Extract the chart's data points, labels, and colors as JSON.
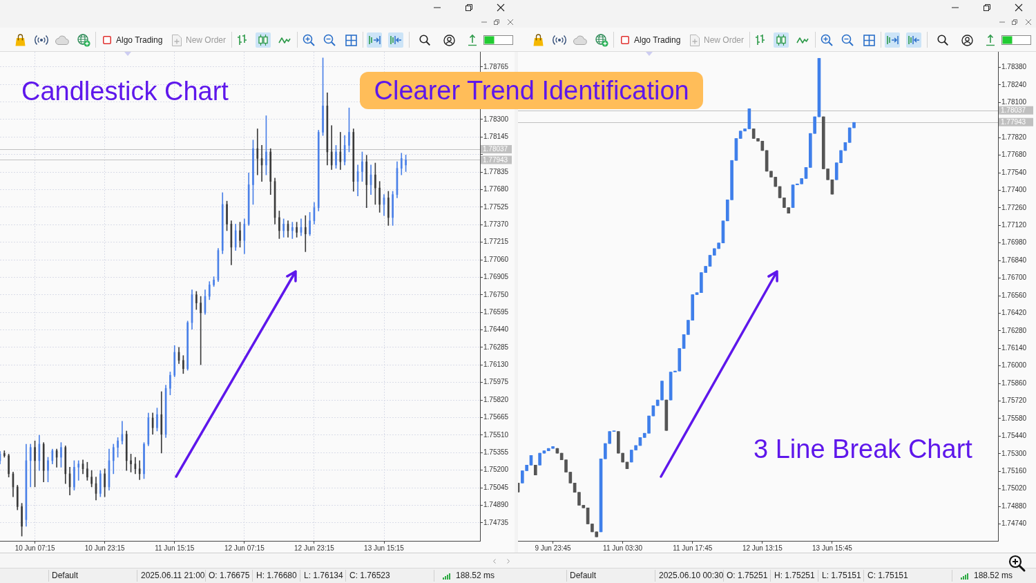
{
  "chart_data": [
    {
      "type": "candlestick",
      "title": "Candlestick Chart",
      "categories": [
        null,
        null,
        null,
        null,
        null,
        null,
        null,
        null,
        "10 Jun 07:15",
        null,
        null,
        null,
        null,
        null,
        null,
        null,
        null,
        null,
        null,
        null,
        null,
        null,
        null,
        null,
        "10 Jun 23:15",
        null,
        null,
        null,
        null,
        null,
        null,
        null,
        null,
        null,
        null,
        null,
        null,
        null,
        null,
        null,
        "11 Jun 15:15",
        null,
        null,
        null,
        null,
        null,
        null,
        null,
        null,
        null,
        null,
        null,
        null,
        null,
        null,
        null,
        "12 Jun 07:15",
        null,
        null,
        null,
        null,
        null,
        null,
        null,
        null,
        null,
        null,
        null,
        null,
        null,
        null,
        null,
        "12 Jun 23:15",
        null,
        null,
        null,
        null,
        null,
        null,
        null,
        null,
        null,
        null,
        null,
        null,
        null,
        null,
        null,
        "13 Jun 15:15",
        null,
        null,
        null,
        null,
        null,
        null,
        null,
        null,
        null,
        null,
        null,
        null,
        null,
        null,
        null,
        null,
        null,
        null,
        null,
        null,
        null,
        null
      ],
      "ohlc": [
        [
          1.75284,
          1.75366,
          1.75255,
          1.75342
        ],
        [
          1.75348,
          1.75372,
          1.75314,
          1.75328
        ],
        [
          1.75328,
          1.75342,
          1.75139,
          1.75168
        ],
        [
          1.75168,
          1.75183,
          1.74965,
          1.75052
        ],
        [
          1.75052,
          1.75067,
          1.74849,
          1.74878
        ],
        [
          1.74878,
          1.74907,
          1.74617,
          1.74704
        ],
        [
          1.74762,
          1.7543,
          1.74704,
          1.75284
        ],
        [
          1.75284,
          1.7543,
          1.75052,
          1.75401
        ],
        [
          1.75401,
          1.75459,
          1.75052,
          1.75284
        ],
        [
          1.75284,
          1.75508,
          1.75197,
          1.7543
        ],
        [
          1.7543,
          1.75444,
          1.75096,
          1.75197
        ],
        [
          1.75197,
          1.75314,
          1.75096,
          1.75284
        ],
        [
          1.75284,
          1.75386,
          1.75255,
          1.75372
        ],
        [
          1.75372,
          1.75386,
          1.75226,
          1.75314
        ],
        [
          1.75314,
          1.75444,
          1.75226,
          1.75401
        ],
        [
          1.75401,
          1.75415,
          1.75081,
          1.75168
        ],
        [
          1.75168,
          1.75226,
          1.7498,
          1.75052
        ],
        [
          1.75052,
          1.75284,
          1.75023,
          1.75226
        ],
        [
          1.75226,
          1.75284,
          1.7511,
          1.75255
        ],
        [
          1.75255,
          1.7529,
          1.75168,
          1.75212
        ],
        [
          1.75212,
          1.7527,
          1.7511,
          1.75139
        ],
        [
          1.75139,
          1.75197,
          1.75052,
          1.75081
        ],
        [
          1.75081,
          1.75139,
          1.74936,
          1.74994
        ],
        [
          1.74994,
          1.75197,
          1.74965,
          1.75168
        ],
        [
          1.75168,
          1.75212,
          1.74965,
          1.75052
        ],
        [
          1.75052,
          1.75386,
          1.75023,
          1.75284
        ],
        [
          1.75284,
          1.7543,
          1.75168,
          1.75401
        ],
        [
          1.75401,
          1.75488,
          1.75314,
          1.75459
        ],
        [
          1.75459,
          1.75633,
          1.7543,
          1.75517
        ],
        [
          1.75517,
          1.75546,
          1.75197,
          1.75284
        ],
        [
          1.75284,
          1.75342,
          1.75183,
          1.75255
        ],
        [
          1.75255,
          1.75314,
          1.75168,
          1.75212
        ],
        [
          1.75212,
          1.75284,
          1.75116,
          1.75168
        ],
        [
          1.75168,
          1.75444,
          1.75125,
          1.7543
        ],
        [
          1.7543,
          1.75705,
          1.75415,
          1.75662
        ],
        [
          1.75662,
          1.75705,
          1.75517,
          1.75575
        ],
        [
          1.75575,
          1.75749,
          1.75546,
          1.75691
        ],
        [
          1.75691,
          1.75894,
          1.75351,
          1.75517
        ],
        [
          1.75517,
          1.75952,
          1.75488,
          1.75923
        ],
        [
          1.75923,
          1.76068,
          1.75865,
          1.76039
        ],
        [
          1.76039,
          1.76301,
          1.76025,
          1.76242
        ],
        [
          1.76242,
          1.76286,
          1.76141,
          1.7617
        ],
        [
          1.7617,
          1.76213,
          1.76054,
          1.76097
        ],
        [
          1.76097,
          1.76518,
          1.76083,
          1.76504
        ],
        [
          1.76504,
          1.76794,
          1.76446,
          1.76751
        ],
        [
          1.76751,
          1.7678,
          1.7662,
          1.76678
        ],
        [
          1.76678,
          1.76736,
          1.76132,
          1.76591
        ],
        [
          1.76591,
          1.76794,
          1.76576,
          1.76736
        ],
        [
          1.76736,
          1.76867,
          1.76707,
          1.76838
        ],
        [
          1.76838,
          1.7691,
          1.76823,
          1.76881
        ],
        [
          1.76881,
          1.7716,
          1.76867,
          1.77142
        ],
        [
          1.77142,
          1.77653,
          1.77113,
          1.77549
        ],
        [
          1.77549,
          1.77578,
          1.77317,
          1.77375
        ],
        [
          1.77375,
          1.77404,
          1.77015,
          1.77171
        ],
        [
          1.77171,
          1.77375,
          1.77142,
          1.77317
        ],
        [
          1.77317,
          1.77392,
          1.77171,
          1.7723
        ],
        [
          1.7723,
          1.77421,
          1.77113,
          1.77375
        ],
        [
          1.77375,
          1.77828,
          1.77363,
          1.77723
        ],
        [
          1.77723,
          1.78118,
          1.77549,
          1.78042
        ],
        [
          1.78042,
          1.78217,
          1.7781,
          1.77955
        ],
        [
          1.77955,
          1.78071,
          1.77752,
          1.77897
        ],
        [
          1.77897,
          1.78333,
          1.7781,
          1.78013
        ],
        [
          1.78013,
          1.78042,
          1.77636,
          1.77752
        ],
        [
          1.77752,
          1.77781,
          1.77375,
          1.77433
        ],
        [
          1.77433,
          1.77491,
          1.77247,
          1.77317
        ],
        [
          1.77317,
          1.77421,
          1.77259,
          1.77375
        ],
        [
          1.77375,
          1.77404,
          1.77259,
          1.77317
        ],
        [
          1.77317,
          1.77392,
          1.77247,
          1.77346
        ],
        [
          1.77346,
          1.77392,
          1.77259,
          1.77302
        ],
        [
          1.77302,
          1.77421,
          1.77273,
          1.77346
        ],
        [
          1.77346,
          1.7745,
          1.77131,
          1.77288
        ],
        [
          1.77288,
          1.77479,
          1.77273,
          1.77404
        ],
        [
          1.77404,
          1.77566,
          1.77375,
          1.7752
        ],
        [
          1.7752,
          1.78205,
          1.77491,
          1.78187
        ],
        [
          1.78187,
          1.78844,
          1.78158,
          1.7842
        ],
        [
          1.7842,
          1.78536,
          1.77897,
          1.78013
        ],
        [
          1.78013,
          1.78246,
          1.77857,
          1.77897
        ],
        [
          1.77897,
          1.78071,
          1.77868,
          1.78013
        ],
        [
          1.78013,
          1.78187,
          1.77857,
          1.77926
        ],
        [
          1.77926,
          1.78158,
          1.77897,
          1.78071
        ],
        [
          1.78071,
          1.78402,
          1.78013,
          1.78187
        ],
        [
          1.78187,
          1.78217,
          1.77665,
          1.77752
        ],
        [
          1.77752,
          1.77897,
          1.77624,
          1.77839
        ],
        [
          1.77839,
          1.78013,
          1.77752,
          1.77926
        ],
        [
          1.77926,
          1.77984,
          1.7752,
          1.77723
        ],
        [
          1.77723,
          1.77897,
          1.77636,
          1.7781
        ],
        [
          1.7781,
          1.77915,
          1.77549,
          1.77694
        ],
        [
          1.77694,
          1.77752,
          1.77479,
          1.77549
        ],
        [
          1.77549,
          1.77636,
          1.7745,
          1.77607
        ],
        [
          1.77607,
          1.77665,
          1.77363,
          1.77433
        ],
        [
          1.77433,
          1.77665,
          1.77363,
          1.77636
        ],
        [
          1.77636,
          1.77926,
          1.77607,
          1.77868
        ],
        [
          1.77868,
          1.78002,
          1.7781,
          1.77955
        ],
        [
          1.77897,
          1.77986,
          1.77839,
          1.77943
        ],
        null,
        null,
        null,
        null,
        null,
        null,
        null,
        null,
        null,
        null,
        null,
        null,
        null,
        null,
        null,
        null,
        null
      ],
      "colors": [
        "#4a80e8",
        "#3a3a3a",
        "#3a3a3a",
        "#3a3a3a",
        "#3a3a3a",
        "#3a3a3a",
        "#4a80e8",
        "#4a80e8",
        "#3a3a3a",
        "#4a80e8",
        "#3a3a3a",
        "#4a80e8",
        "#4a80e8",
        "#3a3a3a",
        "#4a80e8",
        "#3a3a3a",
        "#3a3a3a",
        "#4a80e8",
        "#4a80e8",
        "#3a3a3a",
        "#3a3a3a",
        "#3a3a3a",
        "#3a3a3a",
        "#4a80e8",
        "#3a3a3a",
        "#4a80e8",
        "#4a80e8",
        "#4a80e8",
        "#4a80e8",
        "#3a3a3a",
        "#3a3a3a",
        "#3a3a3a",
        "#3a3a3a",
        "#4a80e8",
        "#4a80e8",
        "#3a3a3a",
        "#4a80e8",
        "#3a3a3a",
        "#4a80e8",
        "#4a80e8",
        "#4a80e8",
        "#3a3a3a",
        "#3a3a3a",
        "#4a80e8",
        "#4a80e8",
        "#3a3a3a",
        "#3a3a3a",
        "#4a80e8",
        "#4a80e8",
        "#4a80e8",
        "#4a80e8",
        "#4a80e8",
        "#3a3a3a",
        "#3a3a3a",
        "#4a80e8",
        "#3a3a3a",
        "#4a80e8",
        "#4a80e8",
        "#4a80e8",
        "#3a3a3a",
        "#3a3a3a",
        "#4a80e8",
        "#3a3a3a",
        "#3a3a3a",
        "#3a3a3a",
        "#4a80e8",
        "#3a3a3a",
        "#4a80e8",
        "#3a3a3a",
        "#4a80e8",
        "#3a3a3a",
        "#4a80e8",
        "#4a80e8",
        "#4a80e8",
        "#4a80e8",
        "#3a3a3a",
        "#3a3a3a",
        "#4a80e8",
        "#3a3a3a",
        "#4a80e8",
        "#4a80e8",
        "#3a3a3a",
        "#4a80e8",
        "#4a80e8",
        "#3a3a3a",
        "#4a80e8",
        "#3a3a3a",
        "#3a3a3a",
        "#4a80e8",
        "#3a3a3a",
        "#4a80e8",
        "#4a80e8",
        "#4a80e8",
        "#4a80e8",
        null,
        null,
        null,
        null,
        null,
        null,
        null,
        null,
        null,
        null,
        null,
        null,
        null,
        null,
        null,
        null,
        null
      ],
      "ylim": [
        1.74575,
        1.78898
      ],
      "yticks": [
        1.74735,
        {
          "value": 1.7489,
          "label": "1.74890"
        },
        1.75045,
        {
          "value": 1.752,
          "label": "1.75200"
        },
        1.75355,
        {
          "value": 1.7551,
          "label": "1.75510"
        },
        1.75665,
        {
          "value": 1.7582,
          "label": "1.75820"
        },
        1.75975,
        {
          "value": 1.7613,
          "label": "1.76130"
        },
        1.76285,
        {
          "value": 1.7644,
          "label": "1.76440"
        },
        1.76595,
        {
          "value": 1.7675,
          "label": "1.76750"
        },
        1.76905,
        {
          "value": 1.7706,
          "label": "1.77060"
        },
        1.77215,
        {
          "value": 1.7737,
          "label": "1.77370"
        },
        1.77525,
        {
          "value": 1.7768,
          "label": "1.77680"
        },
        1.77835,
        {
          "value": 1.7799,
          "label": null
        },
        1.78145,
        {
          "value": 1.783,
          "label": "1.78300"
        },
        {
          "value": 1.78455,
          "label": null
        },
        {
          "value": 1.7861,
          "label": null
        },
        1.78765
      ],
      "grid": true,
      "ref_lines": [
        {
          "axis": "y",
          "value": 1.78037,
          "label": "1.78037",
          "color": "#c0c0c0"
        },
        {
          "axis": "y",
          "value": 1.77943,
          "label": "1.77943",
          "color": "#c0c0c0"
        }
      ],
      "annotations": [
        "Algo Trading",
        "New Order",
        "Default",
        "2025.06.11 21:00",
        "O: 1.76675",
        "H: 1.76680",
        "L: 1.76134",
        "C: 1.76523",
        "188.52 ms"
      ]
    },
    {
      "type": "candlestick",
      "title": "3 Line Break Chart",
      "subtitle": "Clearer Trend Identification",
      "categories": [
        null,
        null,
        null,
        null,
        null,
        null,
        null,
        null,
        "9 Jun 23:45",
        null,
        null,
        null,
        null,
        null,
        null,
        null,
        null,
        null,
        null,
        null,
        null,
        null,
        null,
        null,
        "11 Jun 03:30",
        null,
        null,
        null,
        null,
        null,
        null,
        null,
        null,
        null,
        null,
        null,
        null,
        null,
        null,
        null,
        "11 Jun 17:45",
        null,
        null,
        null,
        null,
        null,
        null,
        null,
        null,
        null,
        null,
        null,
        null,
        null,
        null,
        null,
        "12 Jun 13:15",
        null,
        null,
        null,
        null,
        null,
        null,
        null,
        null,
        null,
        null,
        null,
        null,
        null,
        null,
        null,
        "13 Jun 15:45",
        null,
        null,
        null,
        null,
        null,
        null,
        null,
        null,
        null,
        null,
        null,
        null,
        null,
        null,
        null,
        null,
        null,
        null,
        null,
        null,
        null,
        null,
        null,
        null,
        null,
        null,
        null,
        null,
        null,
        null,
        null,
        null,
        null,
        null,
        null,
        null,
        null,
        null
      ],
      "ohlc": [
        [
          1.75066,
          1.75066,
          1.74994,
          1.74994
        ],
        [
          1.75066,
          1.75164,
          1.75066,
          1.75164
        ],
        [
          1.75164,
          1.75209,
          1.75164,
          1.75209
        ],
        [
          1.75209,
          1.75286,
          1.75209,
          1.75286
        ],
        [
          1.75209,
          1.75209,
          1.7513,
          1.7513
        ],
        [
          1.75209,
          1.75304,
          1.75209,
          1.75304
        ],
        [
          1.75304,
          1.75323,
          1.75304,
          1.75323
        ],
        [
          1.75323,
          1.75342,
          1.75323,
          1.75342
        ],
        [
          1.75342,
          1.75357,
          1.75342,
          1.75357
        ],
        [
          1.75342,
          1.75342,
          1.75304,
          1.75304
        ],
        [
          1.75304,
          1.75304,
          1.75251,
          1.75251
        ],
        [
          1.75251,
          1.75251,
          1.75153,
          1.75153
        ],
        [
          1.75153,
          1.75153,
          1.75066,
          1.75066
        ],
        [
          1.75066,
          1.75066,
          1.74992,
          1.74992
        ],
        [
          1.74992,
          1.74992,
          1.74889,
          1.74889
        ],
        [
          1.74889,
          1.74889,
          1.74868,
          1.74868
        ],
        [
          1.74868,
          1.74868,
          1.7474,
          1.7474
        ],
        [
          1.7474,
          1.7474,
          1.74677,
          1.74677
        ],
        [
          1.74677,
          1.74677,
          1.74637,
          1.74637
        ],
        [
          1.74677,
          1.75259,
          1.74677,
          1.75259
        ],
        [
          1.75259,
          1.75381,
          1.75259,
          1.75381
        ],
        [
          1.75381,
          1.75477,
          1.75381,
          1.75477
        ],
        [
          1.75477,
          1.7548,
          1.75477,
          1.7548
        ],
        [
          1.75477,
          1.75477,
          1.75304,
          1.75304
        ],
        [
          1.75304,
          1.75304,
          1.75233,
          1.75233
        ],
        [
          1.75233,
          1.75233,
          1.7518,
          1.7518
        ],
        [
          1.75233,
          1.75329,
          1.75233,
          1.75329
        ],
        [
          1.75329,
          1.75365,
          1.75329,
          1.75365
        ],
        [
          1.75365,
          1.75429,
          1.75365,
          1.75429
        ],
        [
          1.75429,
          1.75463,
          1.75429,
          1.75463
        ],
        [
          1.75463,
          1.75601,
          1.75463,
          1.75601
        ],
        [
          1.75601,
          1.75683,
          1.75601,
          1.75683
        ],
        [
          1.75683,
          1.75728,
          1.75683,
          1.75728
        ],
        [
          1.75728,
          1.75879,
          1.75728,
          1.75879
        ],
        [
          1.75728,
          1.75728,
          1.75485,
          1.75485
        ],
        [
          1.75728,
          1.75951,
          1.75728,
          1.75951
        ],
        [
          1.75951,
          1.75959,
          1.75951,
          1.75959
        ],
        [
          1.75959,
          1.76139,
          1.75959,
          1.76139
        ],
        [
          1.76139,
          1.7625,
          1.76139,
          1.7625
        ],
        [
          1.7625,
          1.76364,
          1.7625,
          1.76364
        ],
        [
          1.76364,
          1.76568,
          1.76364,
          1.76568
        ],
        [
          1.76568,
          1.76584,
          1.76568,
          1.76584
        ],
        [
          1.76584,
          1.76744,
          1.76584,
          1.76744
        ],
        [
          1.76744,
          1.76794,
          1.76744,
          1.76794
        ],
        [
          1.76794,
          1.76882,
          1.76794,
          1.76882
        ],
        [
          1.76882,
          1.76935,
          1.76882,
          1.76935
        ],
        [
          1.76935,
          1.7698,
          1.76935,
          1.7698
        ],
        [
          1.7698,
          1.77156,
          1.7698,
          1.77156
        ],
        [
          1.77156,
          1.77324,
          1.77156,
          1.77324
        ],
        [
          1.77324,
          1.77638,
          1.77324,
          1.77638
        ],
        [
          1.77638,
          1.77813,
          1.77638,
          1.77813
        ],
        [
          1.77813,
          1.77872,
          1.77813,
          1.77872
        ],
        [
          1.77872,
          1.7789,
          1.77872,
          1.7789
        ],
        [
          1.7789,
          1.7805,
          1.7789,
          1.7805
        ],
        [
          1.7789,
          1.7789,
          1.77813,
          1.77813
        ],
        [
          1.77813,
          1.77813,
          1.77792,
          1.77792
        ],
        [
          1.77792,
          1.77792,
          1.77717,
          1.77717
        ],
        [
          1.77717,
          1.77717,
          1.77552,
          1.77552
        ],
        [
          1.77552,
          1.77552,
          1.77505,
          1.77505
        ],
        [
          1.77505,
          1.77505,
          1.7743,
          1.7743
        ],
        [
          1.7743,
          1.7743,
          1.7734,
          1.7734
        ],
        [
          1.7734,
          1.7734,
          1.77262,
          1.77262
        ],
        [
          1.77262,
          1.77262,
          1.77217,
          1.77217
        ],
        [
          1.77262,
          1.77443,
          1.77262,
          1.77443
        ],
        [
          1.77443,
          1.77451,
          1.77443,
          1.77451
        ],
        [
          1.77451,
          1.77494,
          1.77451,
          1.77494
        ],
        [
          1.77494,
          1.77582,
          1.77494,
          1.77582
        ],
        [
          1.77582,
          1.77853,
          1.77582,
          1.77853
        ],
        [
          1.77853,
          1.77986,
          1.77853,
          1.77986
        ],
        [
          1.77986,
          1.78452,
          1.77986,
          1.78452
        ],
        [
          1.77986,
          1.77986,
          1.77571,
          1.77571
        ],
        [
          1.77571,
          1.77571,
          1.77484,
          1.77484
        ],
        [
          1.77484,
          1.77484,
          1.77369,
          1.77369
        ],
        [
          1.77484,
          1.77619,
          1.77484,
          1.77619
        ],
        [
          1.77619,
          1.77717,
          1.77619,
          1.77717
        ],
        [
          1.77717,
          1.77781,
          1.77717,
          1.77781
        ],
        [
          1.77781,
          1.77898,
          1.77781,
          1.77898
        ],
        [
          1.77898,
          1.77941,
          1.77898,
          1.77941
        ],
        null,
        null,
        null,
        null,
        null,
        null,
        null,
        null,
        null,
        null,
        null,
        null,
        null,
        null,
        null,
        null,
        null,
        null,
        null,
        null,
        null,
        null,
        null,
        null,
        null,
        null,
        null,
        null,
        null,
        null,
        null,
        null,
        null
      ],
      "colors": [
        "#555555",
        "#3f7fea",
        "#3f7fea",
        "#3f7fea",
        "#555555",
        "#3f7fea",
        "#3f7fea",
        "#3f7fea",
        "#3f7fea",
        "#555555",
        "#555555",
        "#555555",
        "#555555",
        "#555555",
        "#555555",
        "#555555",
        "#555555",
        "#555555",
        "#555555",
        "#3f7fea",
        "#3f7fea",
        "#3f7fea",
        "#3f7fea",
        "#555555",
        "#555555",
        "#555555",
        "#3f7fea",
        "#3f7fea",
        "#3f7fea",
        "#3f7fea",
        "#3f7fea",
        "#3f7fea",
        "#3f7fea",
        "#3f7fea",
        "#555555",
        "#3f7fea",
        "#3f7fea",
        "#3f7fea",
        "#3f7fea",
        "#3f7fea",
        "#3f7fea",
        "#3f7fea",
        "#3f7fea",
        "#3f7fea",
        "#3f7fea",
        "#3f7fea",
        "#3f7fea",
        "#3f7fea",
        "#3f7fea",
        "#3f7fea",
        "#3f7fea",
        "#3f7fea",
        "#3f7fea",
        "#3f7fea",
        "#555555",
        "#555555",
        "#555555",
        "#555555",
        "#555555",
        "#555555",
        "#555555",
        "#555555",
        "#555555",
        "#3f7fea",
        "#3f7fea",
        "#3f7fea",
        "#3f7fea",
        "#3f7fea",
        "#3f7fea",
        "#3f7fea",
        "#555555",
        "#555555",
        "#555555",
        "#3f7fea",
        "#3f7fea",
        "#3f7fea",
        "#3f7fea",
        "#3f7fea",
        null,
        null,
        null,
        null,
        null,
        null,
        null,
        null,
        null,
        null,
        null,
        null,
        null,
        null,
        null,
        null,
        null,
        null,
        null,
        null,
        null,
        null,
        null,
        null,
        null,
        null,
        null,
        null,
        null,
        null,
        null,
        null,
        null
      ],
      "ylim": [
        1.74605,
        1.78504
      ],
      "yticks": [
        {
          "value": 1.7474,
          "label": "1.74740"
        },
        {
          "value": 1.7488,
          "label": "1.74880"
        },
        {
          "value": 1.7502,
          "label": "1.75020"
        },
        {
          "value": 1.7516,
          "label": "1.75160"
        },
        {
          "value": 1.753,
          "label": "1.75300"
        },
        {
          "value": 1.7544,
          "label": "1.75440"
        },
        {
          "value": 1.7558,
          "label": "1.75580"
        },
        {
          "value": 1.7572,
          "label": "1.75720"
        },
        {
          "value": 1.7586,
          "label": "1.75860"
        },
        {
          "value": 1.76,
          "label": "1.76000"
        },
        {
          "value": 1.7614,
          "label": "1.76140"
        },
        {
          "value": 1.7628,
          "label": "1.76280"
        },
        {
          "value": 1.7642,
          "label": "1.76420"
        },
        {
          "value": 1.7656,
          "label": "1.76560"
        },
        {
          "value": 1.767,
          "label": "1.76700"
        },
        {
          "value": 1.7684,
          "label": "1.76840"
        },
        {
          "value": 1.7698,
          "label": "1.76980"
        },
        {
          "value": 1.7712,
          "label": "1.77120"
        },
        {
          "value": 1.7726,
          "label": "1.77260"
        },
        {
          "value": 1.774,
          "label": "1.77400"
        },
        {
          "value": 1.7754,
          "label": "1.77540"
        },
        {
          "value": 1.7768,
          "label": "1.77680"
        },
        {
          "value": 1.7782,
          "label": "1.77820"
        },
        {
          "value": 1.7796,
          "label": null
        },
        {
          "value": 1.781,
          "label": "1.78100"
        },
        {
          "value": 1.7824,
          "label": "1.78240"
        },
        {
          "value": 1.7838,
          "label": "1.78380"
        }
      ],
      "ref_lines": [
        {
          "axis": "y",
          "value": 1.78037,
          "label": "1.78037",
          "color": "#c0c0c0"
        },
        {
          "axis": "y",
          "value": 1.77943,
          "label": "1.77943",
          "color": "#c0c0c0"
        }
      ],
      "annotations": [
        "Algo Trading",
        "New Order",
        "Default",
        "2025.06.10 00:30",
        "O: 1.75251",
        "H: 1.75251",
        "L: 1.75151",
        "C: 1.75151",
        "188.52 ms"
      ]
    }
  ]
}
